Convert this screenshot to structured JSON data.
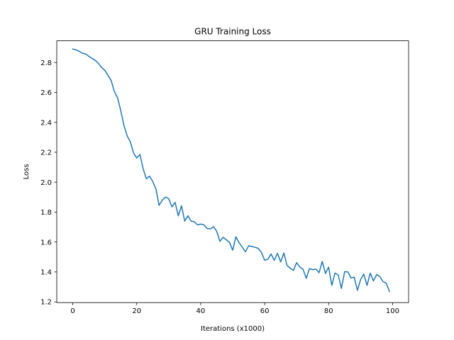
{
  "chart_data": {
    "type": "line",
    "title": "GRU Training Loss",
    "xlabel": "Iterations (x1000)",
    "ylabel": "Loss",
    "xlim": [
      -5,
      105
    ],
    "ylim": [
      1.195,
      2.945
    ],
    "xticks": [
      0,
      20,
      40,
      60,
      80,
      100
    ],
    "yticks": [
      1.2,
      1.4,
      1.6,
      1.8,
      2.0,
      2.2,
      2.4,
      2.6,
      2.8
    ],
    "ytick_labels": [
      "1.2",
      "1.4",
      "1.6",
      "1.8",
      "2.0",
      "2.2",
      "2.4",
      "2.6",
      "2.8"
    ],
    "grid": false,
    "line_color": "#1f77b4",
    "series": [
      {
        "x": [
          0,
          1,
          2,
          3,
          4,
          5,
          6,
          7,
          8,
          9,
          10,
          11,
          12,
          13,
          14,
          15,
          16,
          17,
          18,
          19,
          20,
          21,
          22,
          23,
          24,
          25,
          26,
          27,
          28,
          29,
          30,
          31,
          32,
          33,
          34,
          35,
          36,
          37,
          38,
          39,
          40,
          41,
          42,
          43,
          44,
          45,
          46,
          47,
          48,
          49,
          50,
          51,
          52,
          53,
          54,
          55,
          56,
          57,
          58,
          59,
          60,
          61,
          62,
          63,
          64,
          65,
          66,
          67,
          68,
          69,
          70,
          71,
          72,
          73,
          74,
          75,
          76,
          77,
          78,
          79,
          80,
          81,
          82,
          83,
          84,
          85,
          86,
          87,
          88,
          89,
          90,
          91,
          92,
          93,
          94,
          95,
          96,
          97,
          98,
          99
        ],
        "values": [
          2.89,
          2.885,
          2.875,
          2.862,
          2.857,
          2.842,
          2.828,
          2.815,
          2.795,
          2.768,
          2.748,
          2.715,
          2.68,
          2.606,
          2.565,
          2.48,
          2.38,
          2.31,
          2.27,
          2.195,
          2.162,
          2.185,
          2.09,
          2.023,
          2.04,
          2.005,
          1.955,
          1.845,
          1.88,
          1.9,
          1.89,
          1.835,
          1.865,
          1.775,
          1.842,
          1.74,
          1.775,
          1.74,
          1.735,
          1.715,
          1.72,
          1.715,
          1.69,
          1.688,
          1.702,
          1.672,
          1.605,
          1.632,
          1.615,
          1.598,
          1.545,
          1.635,
          1.595,
          1.565,
          1.535,
          1.575,
          1.57,
          1.565,
          1.557,
          1.53,
          1.478,
          1.485,
          1.52,
          1.478,
          1.525,
          1.467,
          1.527,
          1.443,
          1.425,
          1.41,
          1.462,
          1.432,
          1.418,
          1.357,
          1.422,
          1.415,
          1.42,
          1.395,
          1.47,
          1.39,
          1.432,
          1.31,
          1.392,
          1.38,
          1.29,
          1.402,
          1.4,
          1.36,
          1.365,
          1.277,
          1.35,
          1.385,
          1.31,
          1.392,
          1.34,
          1.382,
          1.37,
          1.335,
          1.325,
          1.27
        ]
      }
    ]
  }
}
